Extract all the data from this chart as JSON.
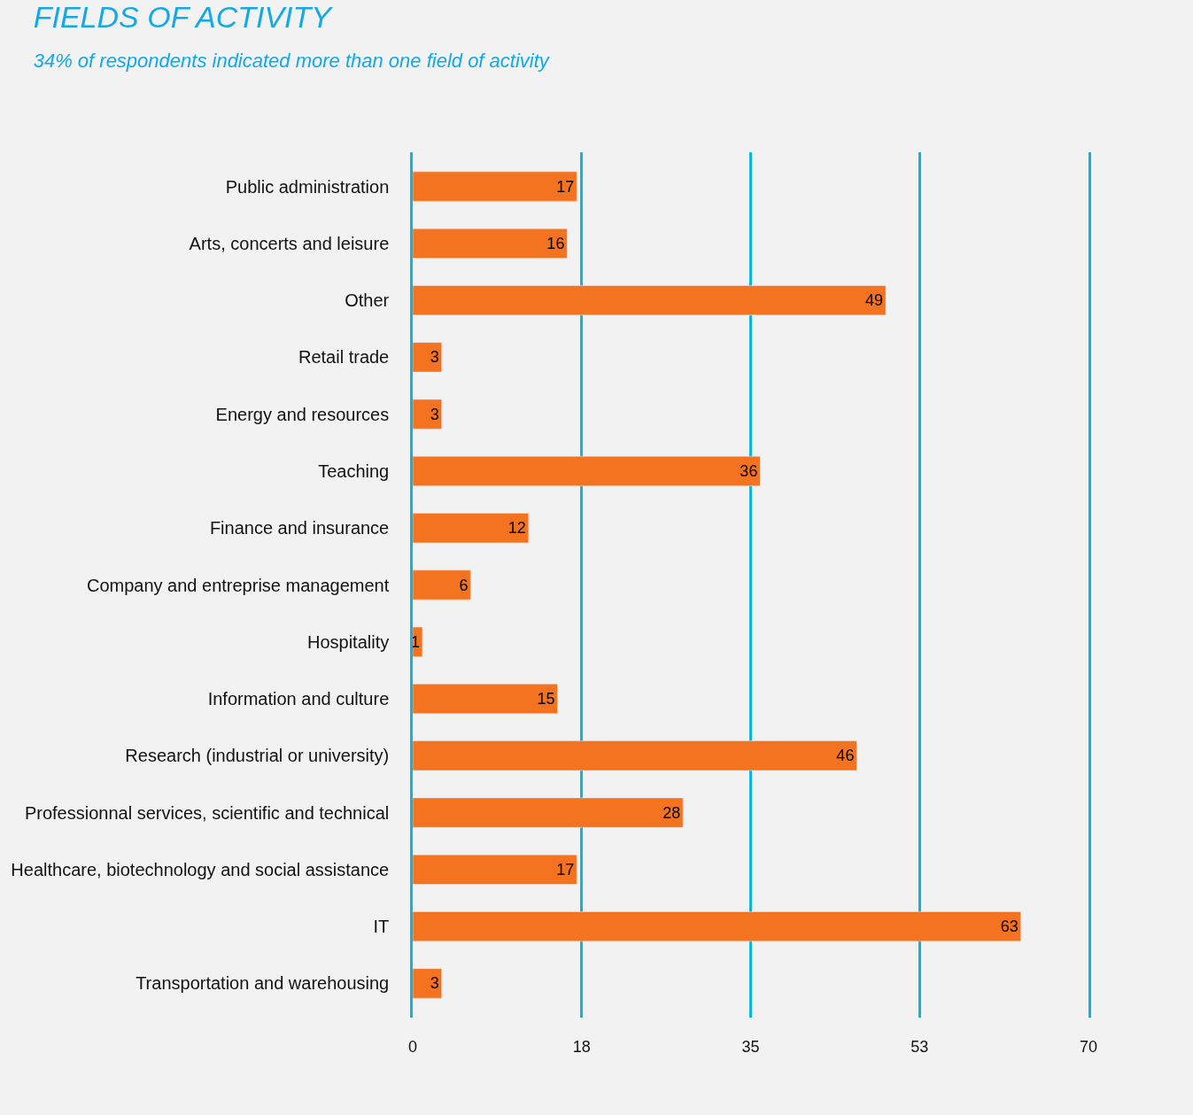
{
  "chart_data": {
    "type": "bar",
    "orientation": "horizontal",
    "title": "FIELDS OF ACTIVITY",
    "subtitle": "34% of respondents indicated more than one field of activity",
    "categories": [
      "Public administration",
      "Arts, concerts and leisure",
      "Other",
      "Retail trade",
      "Energy and resources",
      "Teaching",
      "Finance and insurance",
      "Company and entreprise management",
      "Hospitality",
      "Information and culture",
      "Research (industrial or university)",
      "Professionnal services, scientific and technical",
      "Healthcare, biotechnology and social assistance",
      "IT",
      "Transportation and warehousing"
    ],
    "values": [
      17,
      16,
      49,
      3,
      3,
      36,
      12,
      6,
      1,
      15,
      46,
      28,
      17,
      63,
      3
    ],
    "color": "#f47321",
    "xlim": [
      0,
      70
    ],
    "xticks": [
      0,
      {
        "value": 17.5,
        "label": "18"
      },
      35,
      {
        "value": 52.5,
        "label": "53"
      },
      70
    ],
    "grid": "x",
    "data_labels": true
  }
}
